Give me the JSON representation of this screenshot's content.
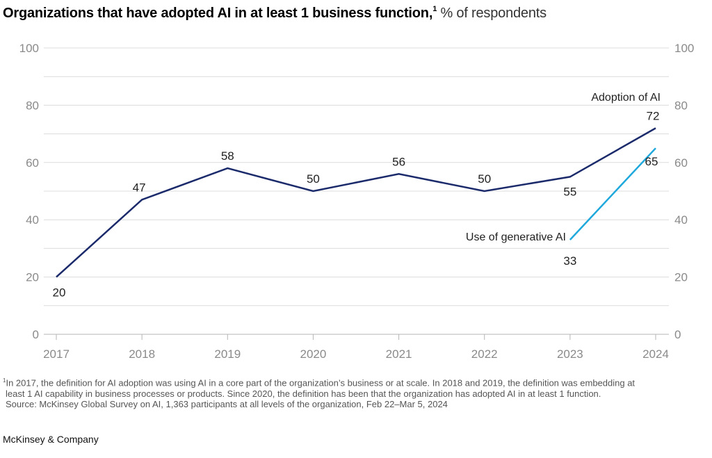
{
  "header": {
    "title_bold": "Organizations that have adopted AI in at least 1 business function,",
    "title_sup": "1",
    "title_unit": " % of respondents"
  },
  "chart_data": {
    "type": "line",
    "title": "Organizations that have adopted AI in at least 1 business function",
    "ylabel": "% of respondents",
    "xlabel": "",
    "x": [
      "2017",
      "2018",
      "2019",
      "2020",
      "2021",
      "2022",
      "2023",
      "2024"
    ],
    "ylim": [
      0,
      100
    ],
    "yticks": [
      0,
      20,
      40,
      60,
      80,
      100
    ],
    "ytick_labels": [
      "0",
      "20",
      "40",
      "60",
      "80",
      "100"
    ],
    "grid": true,
    "grid_step": 10,
    "dual_y_axis_labels": true,
    "series": [
      {
        "name": "Adoption of AI",
        "color": "#1b2a6b",
        "x": [
          "2017",
          "2018",
          "2019",
          "2020",
          "2021",
          "2022",
          "2023",
          "2024"
        ],
        "values": [
          20,
          47,
          58,
          50,
          56,
          50,
          55,
          72
        ],
        "labels": [
          "20",
          "47",
          "58",
          "50",
          "56",
          "50",
          "55",
          "72"
        ]
      },
      {
        "name": "Use of generative AI",
        "color": "#1fa8dc",
        "x": [
          "2023",
          "2024"
        ],
        "values": [
          33,
          65
        ],
        "labels": [
          "33",
          "65"
        ]
      }
    ]
  },
  "footnote": {
    "line1": "In 2017, the definition for AI adoption was using AI in a core part of the organization’s business or at scale. In 2018 and 2019, the definition was embedding at",
    "line1_sup": "1",
    "line2": "least 1 AI capability in business processes or products. Since 2020, the definition has been that the organization has adopted AI in at least 1 function.",
    "source": "Source: McKinsey Global Survey on AI, 1,363 participants at all levels of the organization, Feb 22–Mar 5, 2024"
  },
  "brand": "McKinsey & Company"
}
